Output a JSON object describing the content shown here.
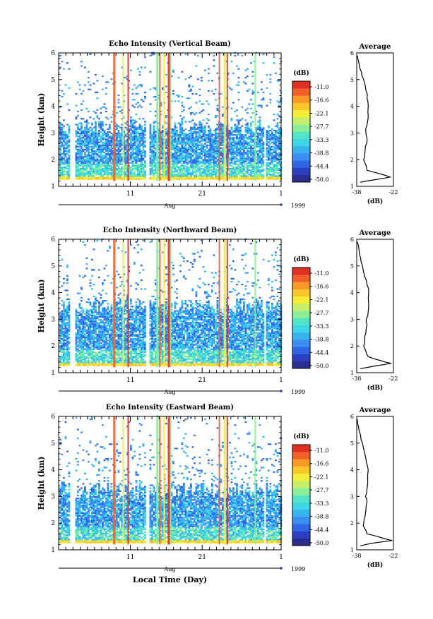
{
  "figure": {
    "xlabel": "Local Time (Day)",
    "month_label": "Aug",
    "year_label": "1999",
    "cbar_unit": "(dB)",
    "avg_title": "Average",
    "avg_xlabel": "(dB)"
  },
  "chart_data": [
    {
      "type": "heatmap",
      "title": "Echo Intensity (Vertical Beam)",
      "xlabel": "Local Time (Day)",
      "ylabel": "Height (km)",
      "x_ticks": [
        "11",
        "21",
        "1"
      ],
      "y_ticks": [
        1,
        2,
        3,
        4,
        5,
        6
      ],
      "ylim": [
        1,
        6
      ],
      "colorbar": {
        "label": "(dB)",
        "ticks": [
          "-11.0",
          "-16.6",
          "-22.1",
          "-27.7",
          "-33.3",
          "-38.8",
          "-44.4",
          "-50.0"
        ],
        "range": [
          -50.0,
          -11.0
        ]
      },
      "bright_days": [
        8.6,
        9.9,
        10.6,
        14.6,
        15.0,
        15.6,
        16.2,
        16.5,
        23.3,
        24.0,
        24.4,
        28.3
      ],
      "average_profile": {
        "title": "Average",
        "xlabel": "(dB)",
        "xlim": [
          -38,
          -22
        ],
        "x_ticks": [
          "-38",
          "-22"
        ],
        "height_km": [
          1.15,
          1.25,
          1.35,
          1.45,
          1.6,
          1.8,
          2.0,
          2.2,
          2.5,
          2.8,
          3.0,
          3.3,
          3.6,
          4.0,
          4.3,
          4.6,
          5.0,
          5.3,
          5.6,
          5.9
        ],
        "db": [
          -36.5,
          -30.0,
          -23.5,
          -27.0,
          -33.5,
          -34.0,
          -35.0,
          -34.5,
          -34.2,
          -33.5,
          -34.0,
          -33.5,
          -33.0,
          -33.0,
          -33.5,
          -34.0,
          -35.0,
          -36.0,
          -37.0,
          -37.8
        ]
      }
    },
    {
      "type": "heatmap",
      "title": "Echo Intensity (Northward Beam)",
      "xlabel": "Local Time (Day)",
      "ylabel": "Height (km)",
      "x_ticks": [
        "11",
        "21",
        "1"
      ],
      "y_ticks": [
        1,
        2,
        3,
        4,
        5,
        6
      ],
      "ylim": [
        1,
        6
      ],
      "colorbar": {
        "label": "(dB)",
        "ticks": [
          "-11.0",
          "-16.6",
          "-22.1",
          "-27.7",
          "-33.3",
          "-38.8",
          "-44.4",
          "-50.0"
        ],
        "range": [
          -50.0,
          -11.0
        ]
      },
      "bright_days": [
        8.6,
        9.9,
        10.6,
        14.6,
        15.0,
        15.6,
        16.2,
        16.5,
        23.3,
        24.0,
        24.4,
        28.3
      ],
      "average_profile": {
        "title": "Average",
        "xlabel": "(dB)",
        "xlim": [
          -38,
          -22
        ],
        "x_ticks": [
          "-38",
          "-22"
        ],
        "height_km": [
          1.15,
          1.25,
          1.35,
          1.45,
          1.6,
          1.8,
          2.0,
          2.2,
          2.5,
          2.8,
          3.0,
          3.3,
          3.6,
          4.0,
          4.3,
          4.6,
          5.0,
          5.3,
          5.6,
          5.9
        ],
        "db": [
          -36.5,
          -30.0,
          -23.0,
          -27.5,
          -33.0,
          -34.0,
          -35.0,
          -34.5,
          -34.0,
          -33.5,
          -33.8,
          -33.0,
          -32.8,
          -32.8,
          -33.5,
          -34.5,
          -35.5,
          -36.3,
          -37.0,
          -37.8
        ]
      }
    },
    {
      "type": "heatmap",
      "title": "Echo Intensity (Eastward Beam)",
      "xlabel": "Local Time (Day)",
      "ylabel": "Height (km)",
      "x_ticks": [
        "11",
        "21",
        "1"
      ],
      "y_ticks": [
        1,
        2,
        3,
        4,
        5,
        6
      ],
      "ylim": [
        1,
        6
      ],
      "colorbar": {
        "label": "(dB)",
        "ticks": [
          "-11.0",
          "-16.6",
          "-22.1",
          "-27.7",
          "-33.3",
          "-38.8",
          "-44.4",
          "-50.0"
        ],
        "range": [
          -50.0,
          -11.0
        ]
      },
      "bright_days": [
        8.6,
        9.9,
        10.6,
        14.6,
        15.0,
        15.6,
        16.2,
        16.5,
        23.3,
        24.0,
        24.4,
        28.3
      ],
      "average_profile": {
        "title": "Average",
        "xlabel": "(dB)",
        "xlim": [
          -38,
          -22
        ],
        "x_ticks": [
          "-38",
          "-22"
        ],
        "height_km": [
          1.15,
          1.25,
          1.35,
          1.45,
          1.6,
          1.8,
          2.0,
          2.2,
          2.5,
          2.8,
          3.0,
          3.3,
          3.6,
          4.0,
          4.3,
          4.6,
          5.0,
          5.3,
          5.6,
          5.9
        ],
        "db": [
          -36.5,
          -31.0,
          -22.5,
          -27.0,
          -33.5,
          -34.5,
          -35.0,
          -34.5,
          -34.0,
          -33.5,
          -34.2,
          -33.5,
          -33.2,
          -33.0,
          -33.8,
          -34.5,
          -35.5,
          -36.3,
          -37.2,
          -37.8
        ]
      }
    }
  ]
}
